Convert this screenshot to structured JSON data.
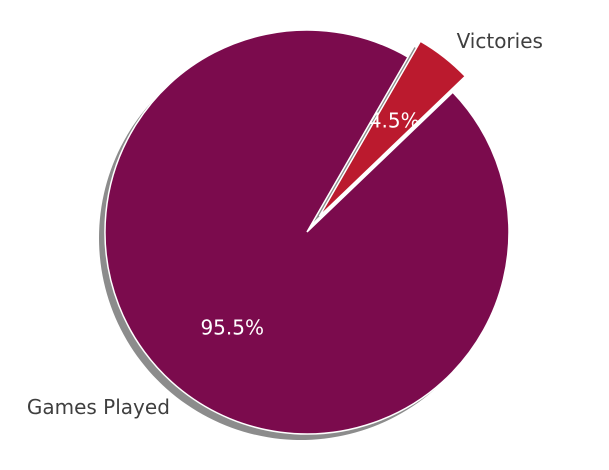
{
  "chart_data": {
    "type": "pie",
    "title": "",
    "slices": [
      {
        "label": "Games Played",
        "value": 95.5,
        "pct_label": "95.5%",
        "color": "#7b0b4d",
        "explode": 0
      },
      {
        "label": "Victories",
        "value": 4.5,
        "pct_label": "4.5%",
        "color": "#bb1a2e",
        "explode": 0.1
      }
    ],
    "shadow": true,
    "start_angle_deg": 60,
    "direction": "counterclockwise",
    "legend": "none"
  }
}
